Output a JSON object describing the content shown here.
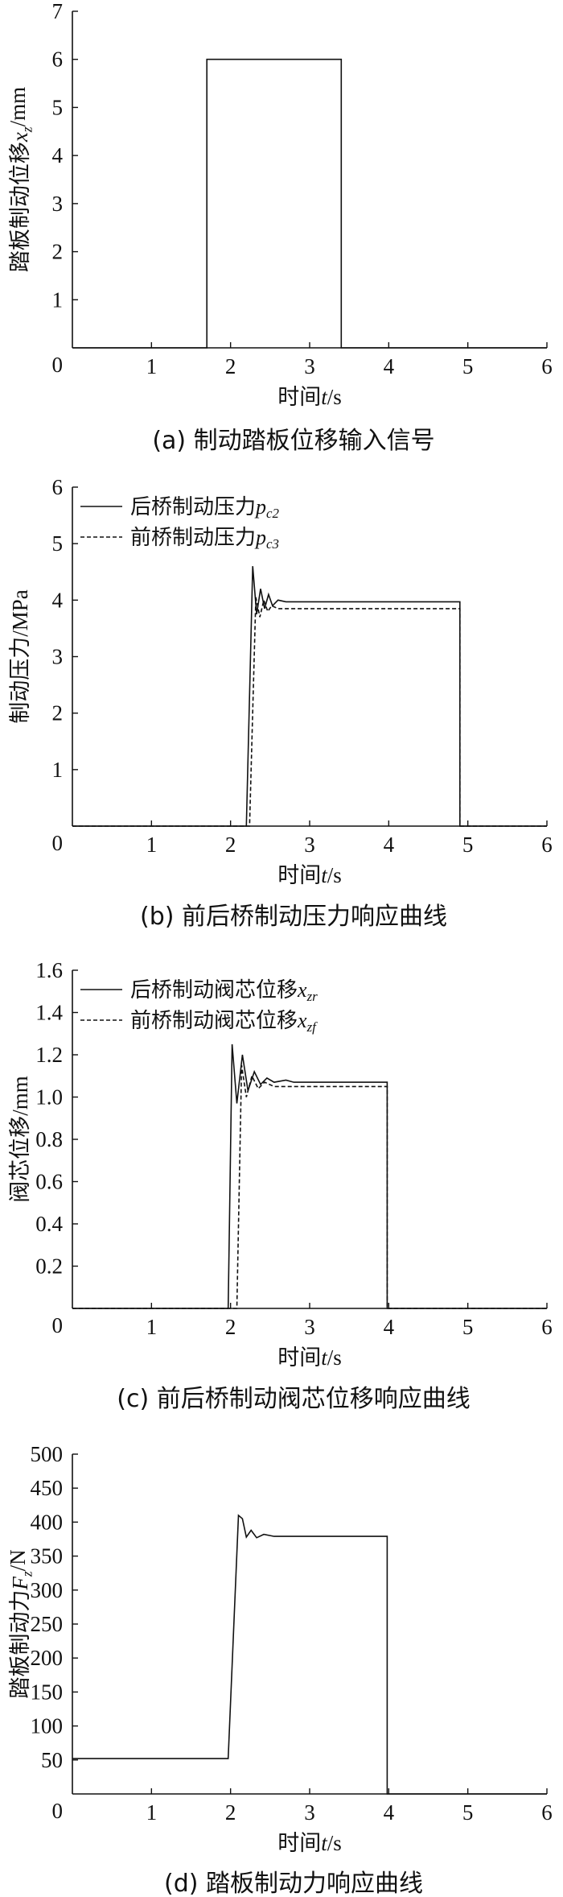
{
  "chart_data": [
    {
      "id": "a",
      "type": "line",
      "caption": "(a)  制动踏板位移输入信号",
      "xlabel": "时间t/s",
      "ylabel": "踏板制动位移x_z/mm",
      "xlim": [
        0,
        6
      ],
      "ylim": [
        0,
        7
      ],
      "xticks": [
        1,
        2,
        3,
        4,
        5,
        6
      ],
      "yticks": [
        1,
        2,
        3,
        4,
        5,
        6,
        7
      ],
      "origin_label": "0",
      "legend": [],
      "series": [
        {
          "style": "solid",
          "points": [
            [
              0,
              0
            ],
            [
              1.7,
              0
            ],
            [
              1.7,
              6
            ],
            [
              3.4,
              6
            ],
            [
              3.4,
              0
            ],
            [
              6,
              0
            ]
          ]
        }
      ]
    },
    {
      "id": "b",
      "type": "line",
      "caption": "(b)  前后桥制动压力响应曲线",
      "xlabel": "时间t/s",
      "ylabel": "制动压力/MPa",
      "xlim": [
        0,
        6
      ],
      "ylim": [
        0,
        6
      ],
      "xticks": [
        1,
        2,
        3,
        4,
        5,
        6
      ],
      "yticks": [
        1,
        2,
        3,
        4,
        5,
        6
      ],
      "origin_label": "0",
      "legend": [
        {
          "label": "后桥制动压力p_c2",
          "style": "solid"
        },
        {
          "label": "前桥制动压力p_c3",
          "style": "dashed"
        }
      ],
      "series": [
        {
          "name": "后桥制动压力p_c2",
          "style": "solid",
          "points": [
            [
              0,
              0
            ],
            [
              2.2,
              0
            ],
            [
              2.28,
              4.6
            ],
            [
              2.33,
              3.75
            ],
            [
              2.38,
              4.2
            ],
            [
              2.43,
              3.85
            ],
            [
              2.48,
              4.1
            ],
            [
              2.53,
              3.9
            ],
            [
              2.6,
              4.0
            ],
            [
              2.7,
              3.97
            ],
            [
              4.9,
              3.97
            ],
            [
              4.9,
              0
            ],
            [
              6,
              0
            ]
          ]
        },
        {
          "name": "前桥制动压力p_c3",
          "style": "dashed",
          "points": [
            [
              0,
              0
            ],
            [
              2.24,
              0
            ],
            [
              2.32,
              4.05
            ],
            [
              2.37,
              3.7
            ],
            [
              2.42,
              4.0
            ],
            [
              2.47,
              3.8
            ],
            [
              2.52,
              3.9
            ],
            [
              2.6,
              3.85
            ],
            [
              4.9,
              3.85
            ],
            [
              4.9,
              0
            ],
            [
              6,
              0
            ]
          ]
        }
      ]
    },
    {
      "id": "c",
      "type": "line",
      "caption": "(c)  前后桥制动阀芯位移响应曲线",
      "xlabel": "时间t/s",
      "ylabel": "阀芯位移/mm",
      "xlim": [
        0,
        6
      ],
      "ylim": [
        0,
        1.6
      ],
      "xticks": [
        1,
        2,
        3,
        4,
        5,
        6
      ],
      "yticks": [
        0.2,
        0.4,
        0.6,
        0.8,
        1.0,
        1.2,
        1.4,
        1.6
      ],
      "ytick_labels": [
        "0.2",
        "0.4",
        "0.6",
        "0.8",
        "1.0",
        "1.2",
        "1.4",
        "1.6"
      ],
      "origin_label": "0",
      "legend": [
        {
          "label": "后桥制动阀芯位移x_zr",
          "style": "solid"
        },
        {
          "label": "前桥制动阀芯位移x_zf",
          "style": "dashed"
        }
      ],
      "series": [
        {
          "name": "后桥制动阀芯位移x_zr",
          "style": "solid",
          "points": [
            [
              0,
              0
            ],
            [
              1.97,
              0
            ],
            [
              2.02,
              1.25
            ],
            [
              2.08,
              0.97
            ],
            [
              2.15,
              1.2
            ],
            [
              2.22,
              1.03
            ],
            [
              2.3,
              1.12
            ],
            [
              2.38,
              1.06
            ],
            [
              2.46,
              1.09
            ],
            [
              2.55,
              1.07
            ],
            [
              2.7,
              1.08
            ],
            [
              2.8,
              1.07
            ],
            [
              3.98,
              1.07
            ],
            [
              3.98,
              0
            ],
            [
              6,
              0
            ]
          ]
        },
        {
          "name": "前桥制动阀芯位移x_zf",
          "style": "dashed",
          "points": [
            [
              0,
              0
            ],
            [
              2.08,
              0
            ],
            [
              2.14,
              1.15
            ],
            [
              2.2,
              1.0
            ],
            [
              2.27,
              1.1
            ],
            [
              2.35,
              1.04
            ],
            [
              2.43,
              1.07
            ],
            [
              2.55,
              1.05
            ],
            [
              3.98,
              1.05
            ],
            [
              3.98,
              0
            ],
            [
              6,
              0
            ]
          ]
        }
      ]
    },
    {
      "id": "d",
      "type": "line",
      "caption": "(d)  踏板制动力响应曲线",
      "xlabel": "时间t/s",
      "ylabel": "踏板制动力F_z/N",
      "xlim": [
        0,
        6
      ],
      "ylim": [
        0,
        500
      ],
      "xticks": [
        1,
        2,
        3,
        4,
        5,
        6
      ],
      "yticks": [
        50,
        100,
        150,
        200,
        250,
        300,
        350,
        400,
        450,
        500
      ],
      "origin_label": "0",
      "legend": [],
      "series": [
        {
          "style": "solid",
          "points": [
            [
              0,
              52
            ],
            [
              1.97,
              52
            ],
            [
              2.1,
              410
            ],
            [
              2.15,
              405
            ],
            [
              2.2,
              378
            ],
            [
              2.26,
              388
            ],
            [
              2.33,
              377
            ],
            [
              2.42,
              382
            ],
            [
              2.55,
              379
            ],
            [
              3.98,
              379
            ],
            [
              3.98,
              0
            ],
            [
              6,
              0
            ]
          ]
        }
      ]
    }
  ]
}
